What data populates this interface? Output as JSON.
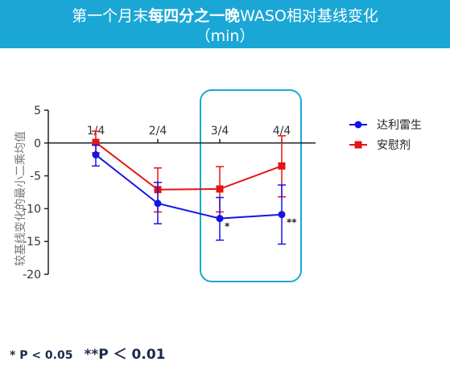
{
  "header": {
    "title_part1": "第一个月末",
    "title_bold": "每四分之一晚",
    "title_part2": "WASO相对基线变化",
    "title_unit": "（min）"
  },
  "chart_data": {
    "type": "line",
    "ylabel": "较基线变化的最小二乘均值",
    "ylim": [
      -20,
      5
    ],
    "yticks": [
      5,
      0,
      -5,
      -10,
      -15,
      -20
    ],
    "categories": [
      "1/4",
      "2/4",
      "3/4",
      "4/4"
    ],
    "series": [
      {
        "name": "达利雷生",
        "color": "#1414e6",
        "marker": "circle",
        "values": [
          -1.8,
          -9.2,
          -11.5,
          -10.9
        ],
        "err_low": [
          -3.5,
          -12.3,
          -14.8,
          -15.4
        ],
        "err_high": [
          -0.3,
          -6.0,
          -8.3,
          -6.4
        ]
      },
      {
        "name": "安慰剂",
        "color": "#e61414",
        "marker": "square",
        "values": [
          0.1,
          -7.1,
          -7.0,
          -3.5
        ],
        "err_low": [
          -1.5,
          -10.5,
          -10.5,
          -8.2
        ],
        "err_high": [
          1.8,
          -3.8,
          -3.6,
          1.1
        ]
      }
    ],
    "annotations": [
      {
        "category": "3/4",
        "text": "*"
      },
      {
        "category": "4/4",
        "text": "**"
      }
    ],
    "highlight": {
      "categories": [
        "3/4",
        "4/4"
      ],
      "color": "#1aa7d6"
    },
    "legend_position": "top-right"
  },
  "footnote": {
    "p1": "* P < 0.05",
    "p2": "**P ＜ 0.01"
  }
}
